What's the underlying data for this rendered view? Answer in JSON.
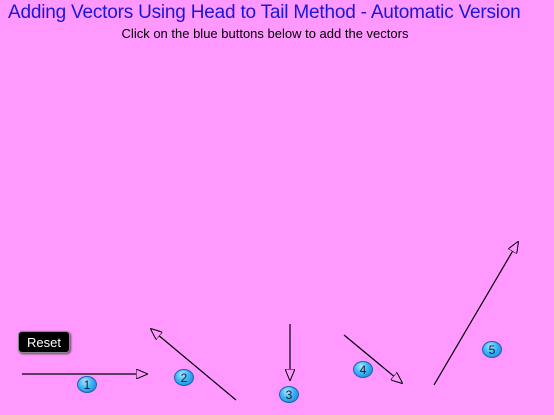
{
  "title": "Adding Vectors Using Head to Tail Method - Automatic Version",
  "instructions": "Click on the blue buttons below to add the vectors",
  "reset_label": "Reset",
  "colors": {
    "background": "#ff99ff",
    "title": "#1a16d8",
    "button": "#39b4f6",
    "vector": "#000000"
  },
  "buttons": [
    {
      "label": "1"
    },
    {
      "label": "2"
    },
    {
      "label": "3"
    },
    {
      "label": "4"
    },
    {
      "label": "5"
    }
  ]
}
